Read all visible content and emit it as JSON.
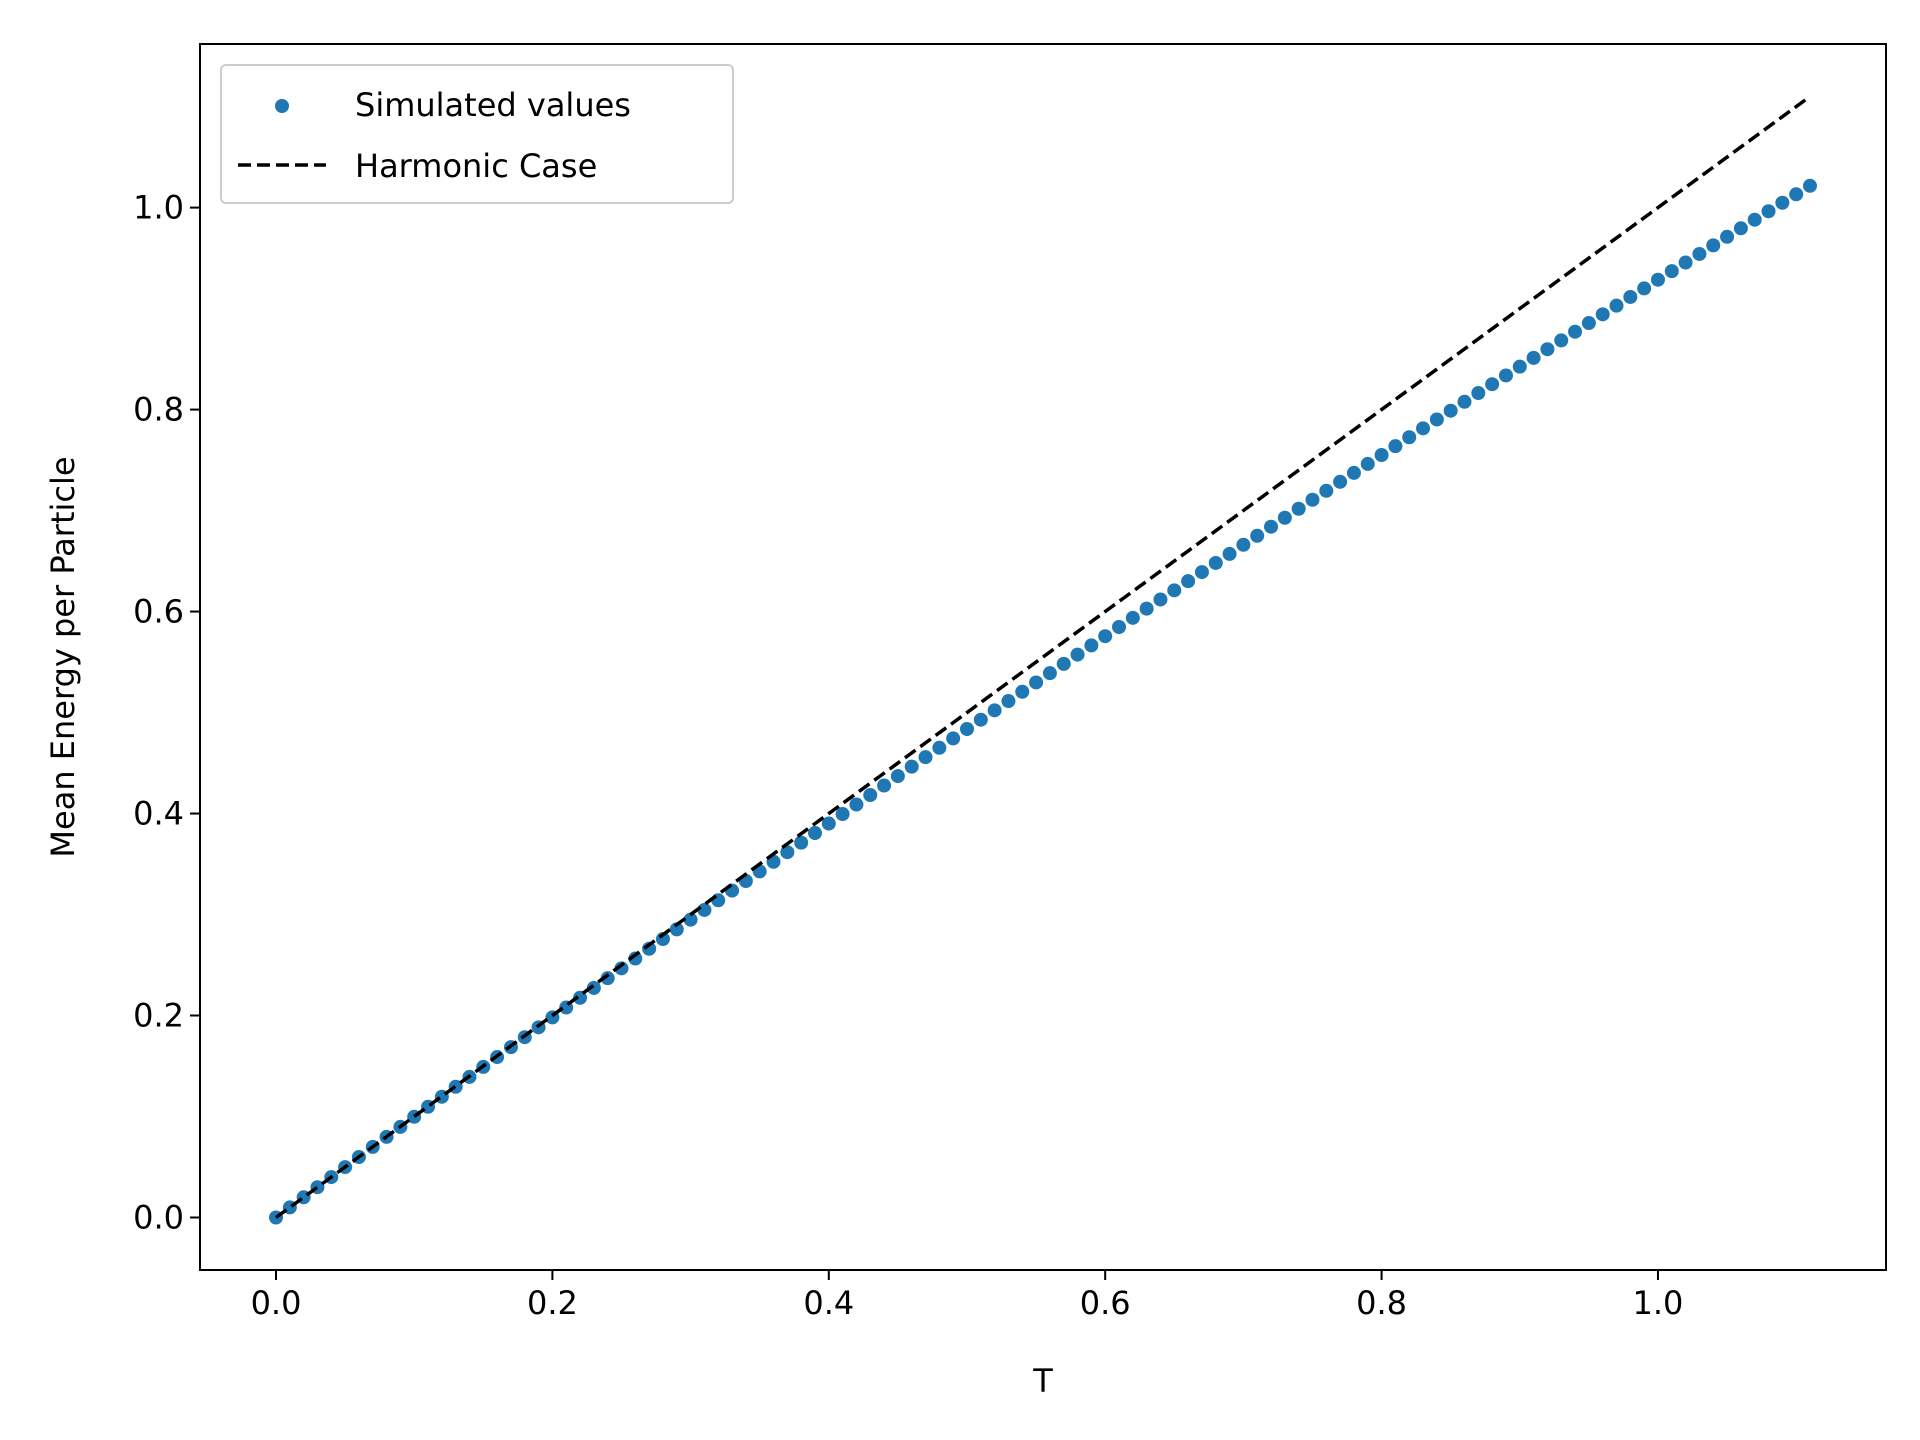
{
  "chart_data": {
    "type": "scatter",
    "xlabel": "T",
    "ylabel": "Mean Energy per Particle",
    "xlim": [
      -0.055,
      1.165
    ],
    "ylim": [
      -0.052,
      1.162
    ],
    "x_ticks": [
      0.0,
      0.2,
      0.4,
      0.6,
      0.8,
      1.0
    ],
    "x_tick_labels": [
      "0.0",
      "0.2",
      "0.4",
      "0.6",
      "0.8",
      "1.0"
    ],
    "y_ticks": [
      0.0,
      0.2,
      0.4,
      0.6,
      0.8,
      1.0
    ],
    "y_tick_labels": [
      "0.0",
      "0.2",
      "0.4",
      "0.6",
      "0.8",
      "1.0"
    ],
    "grid": false,
    "legend_position": "top-left",
    "series": [
      {
        "name": "Simulated values",
        "type": "scatter",
        "color": "#1f77b4",
        "x": [
          0.0,
          0.01,
          0.02,
          0.03,
          0.04,
          0.05,
          0.06,
          0.07,
          0.08,
          0.09,
          0.1,
          0.11,
          0.12,
          0.13,
          0.14,
          0.15,
          0.16,
          0.17,
          0.18,
          0.19,
          0.2,
          0.21,
          0.22,
          0.23,
          0.24,
          0.25,
          0.26,
          0.27,
          0.28,
          0.29,
          0.3,
          0.31,
          0.32,
          0.33,
          0.34,
          0.35,
          0.36,
          0.37,
          0.38,
          0.39,
          0.4,
          0.41,
          0.42,
          0.43,
          0.44,
          0.45,
          0.46,
          0.47,
          0.48,
          0.49,
          0.5,
          0.51,
          0.52,
          0.53,
          0.54,
          0.55,
          0.56,
          0.57,
          0.58,
          0.59,
          0.6,
          0.61,
          0.62,
          0.63,
          0.64,
          0.65,
          0.66,
          0.67,
          0.68,
          0.69,
          0.7,
          0.71,
          0.72,
          0.73,
          0.74,
          0.75,
          0.76,
          0.77,
          0.78,
          0.79,
          0.8,
          0.81,
          0.82,
          0.83,
          0.84,
          0.85,
          0.86,
          0.87,
          0.88,
          0.89,
          0.9,
          0.91,
          0.92,
          0.93,
          0.94,
          0.95,
          0.96,
          0.97,
          0.98,
          0.99,
          1.0,
          1.01,
          1.02,
          1.03,
          1.04,
          1.05,
          1.06,
          1.07,
          1.08,
          1.09,
          1.1,
          1.11
        ],
        "y": [
          0.0,
          0.01,
          0.02,
          0.03,
          0.04,
          0.0499,
          0.0599,
          0.0699,
          0.0798,
          0.0897,
          0.0997,
          0.1096,
          0.1195,
          0.1294,
          0.1392,
          0.1491,
          0.1589,
          0.1687,
          0.1785,
          0.1883,
          0.1981,
          0.2079,
          0.2176,
          0.2273,
          0.237,
          0.2467,
          0.2564,
          0.2661,
          0.2757,
          0.2853,
          0.2949,
          0.3045,
          0.3141,
          0.3237,
          0.3332,
          0.3427,
          0.3522,
          0.3617,
          0.3712,
          0.3807,
          0.3901,
          0.3995,
          0.4089,
          0.4183,
          0.4277,
          0.4371,
          0.4464,
          0.4558,
          0.4651,
          0.4744,
          0.4837,
          0.4929,
          0.5022,
          0.5114,
          0.5206,
          0.5298,
          0.539,
          0.5482,
          0.5574,
          0.5665,
          0.5756,
          0.5847,
          0.5938,
          0.6029,
          0.612,
          0.621,
          0.6301,
          0.6391,
          0.6481,
          0.6571,
          0.6661,
          0.675,
          0.684,
          0.6929,
          0.7018,
          0.7107,
          0.7196,
          0.7285,
          0.7373,
          0.7462,
          0.755,
          0.7638,
          0.7726,
          0.7814,
          0.7902,
          0.7989,
          0.8077,
          0.8164,
          0.8251,
          0.8338,
          0.8425,
          0.8512,
          0.8598,
          0.8685,
          0.8771,
          0.8857,
          0.8943,
          0.9029,
          0.9115,
          0.92,
          0.9286,
          0.9371,
          0.9456,
          0.9541,
          0.9626,
          0.9711,
          0.9795,
          0.988,
          0.9964,
          1.0048,
          1.0132,
          1.0216
        ]
      },
      {
        "name": "Harmonic Case",
        "type": "line",
        "color": "#000000",
        "dash": "dashed",
        "x": [
          0.0,
          1.11
        ],
        "y": [
          0.0,
          1.11
        ]
      }
    ]
  }
}
